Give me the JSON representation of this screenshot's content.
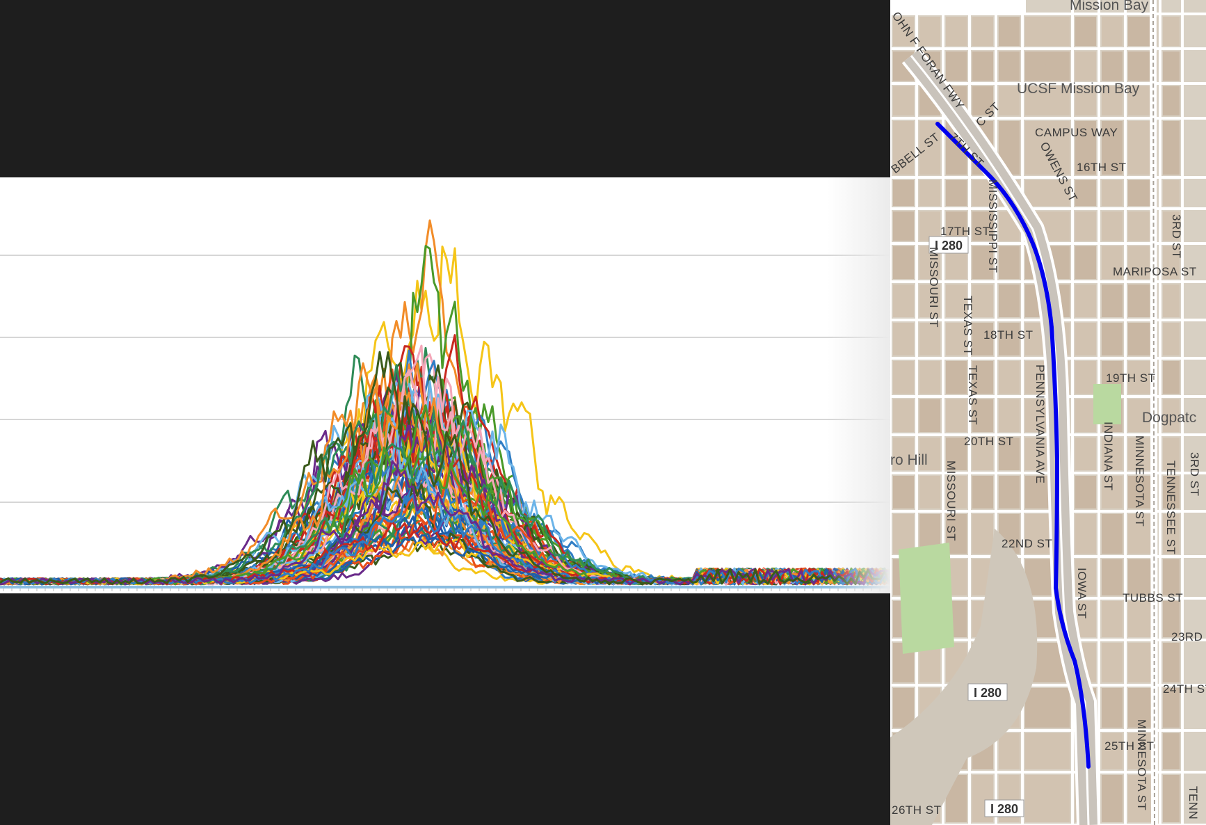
{
  "chart_data": {
    "type": "line",
    "series_count": 80,
    "grid": true,
    "legend": "none",
    "palette": [
      "#f5c518",
      "#f28c28",
      "#4a9a2a",
      "#1f5fa8",
      "#c8281e",
      "#2f7dc4",
      "#6a2a8a",
      "#3a5a1a",
      "#f4a7b9",
      "#6cb4e8",
      "#e84e1b",
      "#2e8b57"
    ],
    "x_range": [
      0,
      1280
    ],
    "y_range": [
      0,
      100
    ],
    "peak_x": 600,
    "peak_values": {
      "max": 93,
      "typical": 50
    }
  },
  "map": {
    "places": {
      "mission_bay": "Mission Bay",
      "ucsf_mission_bay": "UCSF Mission Bay",
      "dogpatch": "Dogpatc",
      "potrero_hill": "ro Hill"
    },
    "streets": {
      "john_f_foran": "OHN F FORAN FWY",
      "c_st": "C ST",
      "campus_way": "CAMPUS WAY",
      "owens_st": "OWENS ST",
      "seventeenth_a": "7TH ST",
      "sixteenth": "16TH ST",
      "mississippi": "MISSISSIPPI ST",
      "hubbell": "BBELL ST",
      "seventeenth": "17TH ST",
      "missouri": "MISSOURI ST",
      "third_st": "3RD ST",
      "mariposa": "MARIPOSA ST",
      "texas_a": "TEXAS ST",
      "texas_b": "TEXAS ST",
      "eighteenth": "18TH ST",
      "nineteenth": "19TH ST",
      "pennsylvania": "PENNSYLVANIA AVE",
      "twentieth": "20TH ST",
      "missouri_b": "MISSOURI ST",
      "indiana": "INDIANA ST",
      "minnesota": "MINNESOTA ST",
      "tennessee": "TENNESSEE ST",
      "third_st_b": "3RD ST",
      "twenty_second": "22ND ST",
      "iowa": "IOWA ST",
      "tubbs": "TUBBS ST",
      "twenty_third": "23RD",
      "twenty_fourth": "24TH ST",
      "twenty_fifth": "25TH ST",
      "minnesota_b": "MINNESOTA ST",
      "twenty_sixth": "26TH ST",
      "tenn_b": "TENN"
    },
    "shields": [
      "I 280",
      "I 280",
      "I 280"
    ],
    "route_color": "#0000ee"
  }
}
